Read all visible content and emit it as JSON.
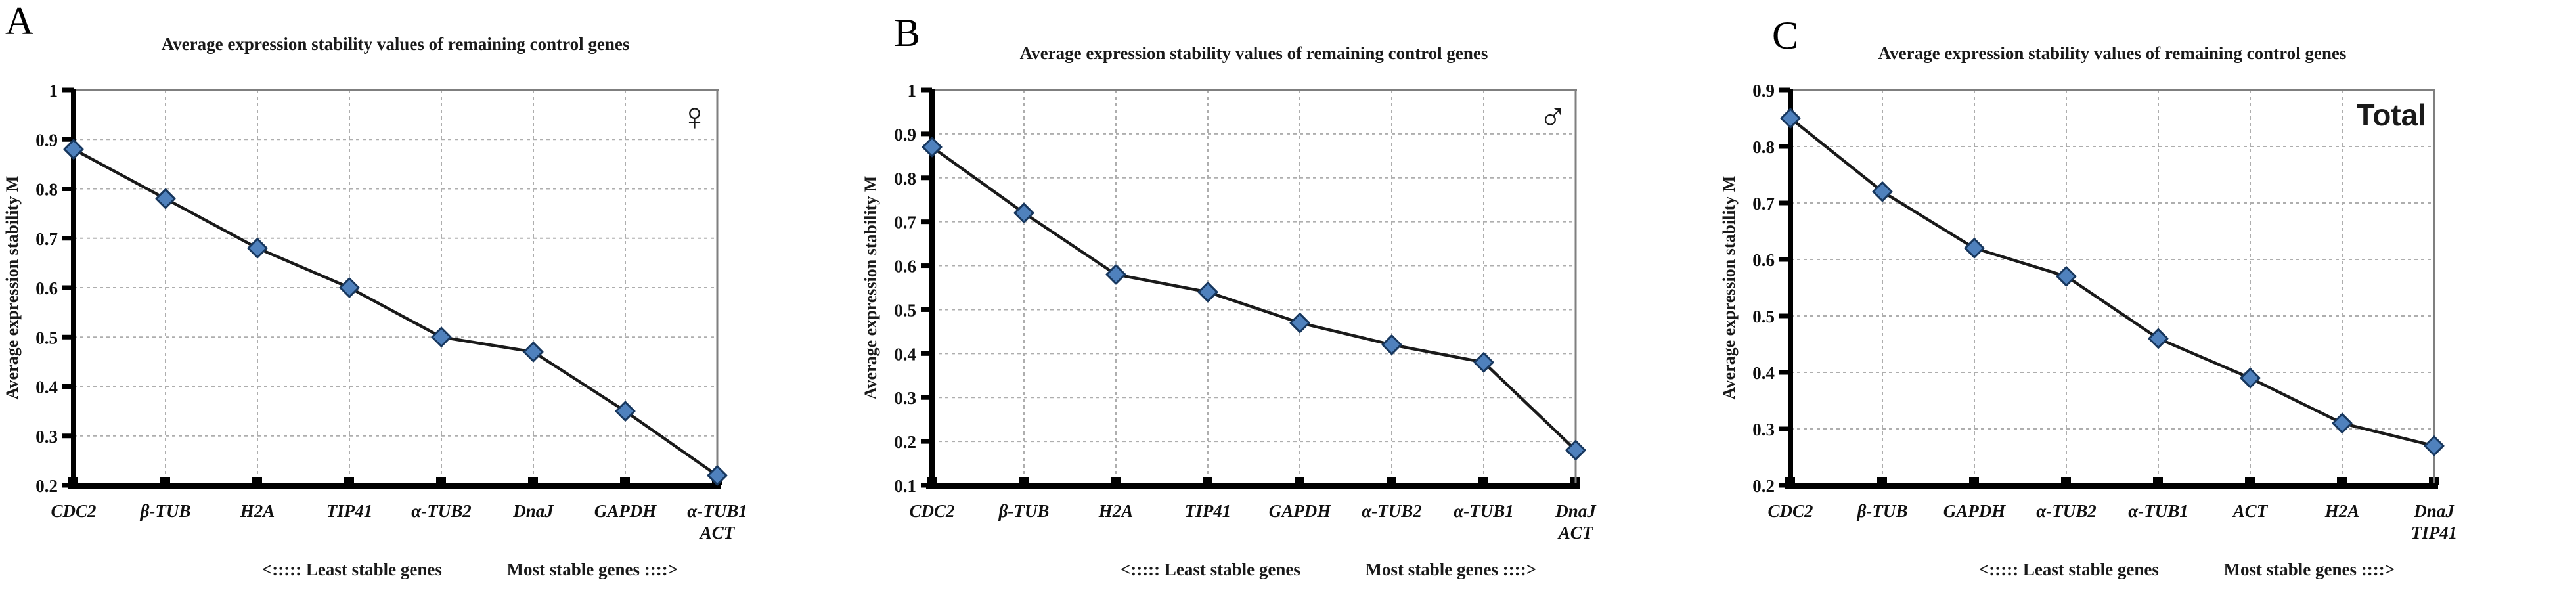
{
  "chart_data": [
    {
      "type": "line",
      "panel_letter": "A",
      "title": "Average expression stability values of remaining control genes",
      "corner_label": "♀",
      "ylabel": "Average expression stability M",
      "footer_left": "<:::::  Least stable genes",
      "footer_right": "Most stable genes ::::>",
      "categories": [
        "CDC2",
        "β-TUB",
        "H2A",
        "TIP41",
        "α-TUB2",
        "DnaJ",
        "GAPDH",
        "α-TUB1\nACT"
      ],
      "values": [
        0.88,
        0.78,
        0.68,
        0.6,
        0.5,
        0.47,
        0.35,
        0.22
      ],
      "ylim": [
        0.2,
        1.0
      ],
      "yticks": [
        1,
        0.9,
        0.8,
        0.7,
        0.6,
        0.5,
        0.4,
        0.3,
        0.2
      ],
      "grid": true,
      "legend": false,
      "marker": "diamond",
      "marker_color": "#4f81bd",
      "marker_edge_color": "#17375e",
      "line_color": "#1a1a1a"
    },
    {
      "type": "line",
      "panel_letter": "B",
      "title": "Average expression stability values of remaining control genes",
      "corner_label": "♂",
      "ylabel": "Average expression stability M",
      "footer_left": "<:::::  Least stable genes",
      "footer_right": "Most stable genes ::::>",
      "categories": [
        "CDC2",
        "β-TUB",
        "H2A",
        "TIP41",
        "GAPDH",
        "α-TUB2",
        "α-TUB1",
        "DnaJ\nACT"
      ],
      "values": [
        0.87,
        0.72,
        0.58,
        0.54,
        0.47,
        0.42,
        0.38,
        0.18
      ],
      "ylim": [
        0.1,
        1.0
      ],
      "yticks": [
        1,
        0.9,
        0.8,
        0.7,
        0.6,
        0.5,
        0.4,
        0.3,
        0.2,
        0.1
      ],
      "grid": true,
      "legend": false,
      "marker": "diamond",
      "marker_color": "#4f81bd",
      "marker_edge_color": "#17375e",
      "line_color": "#1a1a1a"
    },
    {
      "type": "line",
      "panel_letter": "C",
      "title": "Average expression stability values of remaining control genes",
      "corner_label": "Total",
      "ylabel": "Average expression stability M",
      "footer_left": "<:::::  Least stable genes",
      "footer_right": "Most stable genes ::::>",
      "categories": [
        "CDC2",
        "β-TUB",
        "GAPDH",
        "α-TUB2",
        "α-TUB1",
        "ACT",
        "H2A",
        "DnaJ\nTIP41"
      ],
      "values": [
        0.85,
        0.72,
        0.62,
        0.57,
        0.46,
        0.39,
        0.31,
        0.27
      ],
      "ylim": [
        0.2,
        0.9
      ],
      "yticks": [
        0.9,
        0.8,
        0.7,
        0.6,
        0.5,
        0.4,
        0.3,
        0.2
      ],
      "grid": true,
      "legend": false,
      "marker": "diamond",
      "marker_color": "#4f81bd",
      "marker_edge_color": "#17375e",
      "line_color": "#1a1a1a"
    }
  ]
}
